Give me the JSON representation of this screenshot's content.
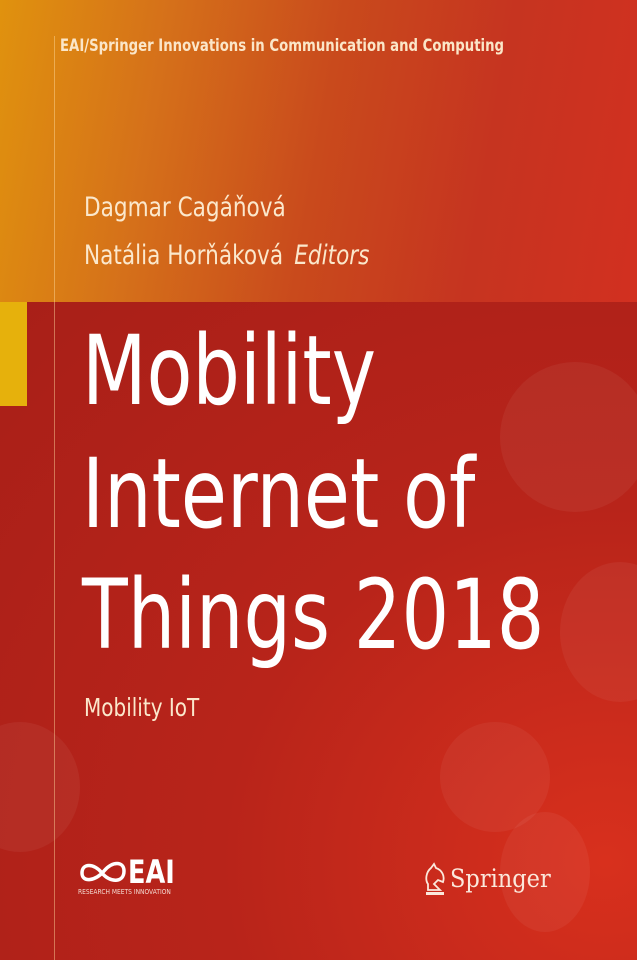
{
  "series": "EAI/Springer Innovations in Communication and Computing",
  "editors": [
    "Dagmar Cagáňová",
    "Natália Horňáková"
  ],
  "editors_label": "Editors",
  "title_lines": [
    "Mobility",
    "Internet of",
    "Things 2018"
  ],
  "subtitle": "Mobility IoT",
  "logos": {
    "eai": {
      "word": "EAI",
      "tagline": "RESEARCH MEETS INNOVATION"
    },
    "springer": {
      "word": "Springer",
      "icon": "knight-chess-piece-icon"
    }
  },
  "colors": {
    "top_gradient_start": "#e0920e",
    "top_gradient_end": "#d23020",
    "panel": "#b3231a",
    "accent_block": "#e6b10c"
  }
}
